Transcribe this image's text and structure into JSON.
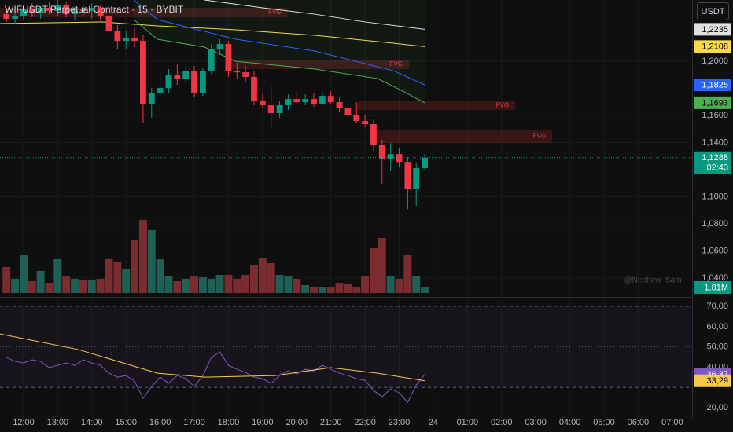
{
  "chart_data": [
    {
      "type": "candlestick",
      "title": "WIFUSDT Perpetual Contract · 15 · BYBIT",
      "currency": "USDT",
      "x": [
        11.5,
        11.75,
        12,
        12.25,
        12.5,
        12.75,
        13,
        13.25,
        13.5,
        13.75,
        14,
        14.25,
        14.5,
        14.75,
        15,
        15.25,
        15.5,
        15.75,
        16,
        16.25,
        16.5,
        16.75,
        17,
        17.25,
        17.5,
        17.75,
        18,
        18.25,
        18.5,
        18.75,
        19,
        19.25,
        19.5,
        19.75,
        20,
        20.25,
        20.5,
        20.75,
        21,
        21.25,
        21.5,
        21.75,
        22,
        22.25,
        22.5,
        22.75,
        23,
        23.25,
        23.5,
        23.75
      ],
      "open": [
        1.2348,
        1.2313,
        1.2336,
        1.2382,
        1.2359,
        1.2394,
        1.2371,
        1.2417,
        1.2348,
        1.2382,
        1.2371,
        1.2394,
        1.2336,
        1.222,
        1.215,
        1.2174,
        1.215,
        1.1686,
        1.1768,
        1.1802,
        1.1895,
        1.1872,
        1.193,
        1.1768,
        1.193,
        1.2092,
        1.2127,
        1.193,
        1.1918,
        1.1884,
        1.171,
        1.1675,
        1.1617,
        1.1675,
        1.1721,
        1.1698,
        1.1721,
        1.1686,
        1.1744,
        1.1698,
        1.1652,
        1.1605,
        1.1559,
        1.1536,
        1.1385,
        1.128,
        1.1315,
        1.1257,
        1.106,
        1.1211
      ],
      "high": [
        1.2394,
        1.2359,
        1.2406,
        1.2429,
        1.2406,
        1.244,
        1.2475,
        1.244,
        1.2406,
        1.2417,
        1.2429,
        1.2417,
        1.2371,
        1.2266,
        1.222,
        1.2243,
        1.2197,
        1.1802,
        1.1918,
        1.1942,
        1.1976,
        1.1953,
        1.1965,
        1.1953,
        1.2127,
        1.2162,
        1.215,
        1.1988,
        1.1965,
        1.193,
        1.1756,
        1.1814,
        1.171,
        1.1756,
        1.1768,
        1.1756,
        1.1768,
        1.1779,
        1.1779,
        1.1733,
        1.1686,
        1.1698,
        1.1605,
        1.157,
        1.142,
        1.1396,
        1.1362,
        1.1292,
        1.1246,
        1.1315
      ],
      "low": [
        1.229,
        1.2278,
        1.2301,
        1.2324,
        1.2313,
        1.2348,
        1.2336,
        1.2324,
        1.2301,
        1.2336,
        1.2313,
        1.2301,
        1.2104,
        1.2092,
        1.2092,
        1.2104,
        1.1547,
        1.1582,
        1.1733,
        1.1768,
        1.1826,
        1.1849,
        1.1733,
        1.1744,
        1.1907,
        1.2046,
        1.1884,
        1.1872,
        1.1849,
        1.1675,
        1.1652,
        1.1501,
        1.1582,
        1.164,
        1.1686,
        1.1675,
        1.1663,
        1.1675,
        1.1686,
        1.1628,
        1.1582,
        1.1547,
        1.1512,
        1.1338,
        1.1095,
        1.1188,
        1.1222,
        1.0909,
        1.0932,
        1.1199
      ],
      "close": [
        1.2313,
        1.2336,
        1.2382,
        1.2359,
        1.2394,
        1.2371,
        1.2417,
        1.2348,
        1.2382,
        1.2371,
        1.2394,
        1.2336,
        1.222,
        1.215,
        1.2174,
        1.215,
        1.1686,
        1.1768,
        1.1802,
        1.1895,
        1.1872,
        1.193,
        1.1768,
        1.193,
        1.2092,
        1.2127,
        1.193,
        1.1918,
        1.1884,
        1.171,
        1.1675,
        1.1617,
        1.1675,
        1.1721,
        1.1698,
        1.1721,
        1.1686,
        1.1744,
        1.1698,
        1.1652,
        1.1605,
        1.1559,
        1.1536,
        1.1385,
        1.128,
        1.1315,
        1.1257,
        1.106,
        1.1211,
        1.1288
      ],
      "up_color": "#089981",
      "down_color": "#f23645",
      "xlim": [
        11.31,
        31.58
      ],
      "ylim": [
        1.0278,
        1.2452
      ],
      "yticks": [
        {
          "value": 1.2,
          "label": "1,2000"
        },
        {
          "value": 1.16,
          "label": "1,1600"
        },
        {
          "value": 1.14,
          "label": "1,1400"
        },
        {
          "value": 1.1,
          "label": "1,1000"
        },
        {
          "value": 1.08,
          "label": "1,0800"
        },
        {
          "value": 1.06,
          "label": "1,0600"
        },
        {
          "value": 1.04,
          "label": "1,0400"
        }
      ],
      "grid": true,
      "last_price_label": "1,1288",
      "countdown": "02:43",
      "overlays": [
        {
          "color": "#e0e0e0",
          "x": [
            17.3,
            19,
            20.5,
            22,
            23.75
          ],
          "values": [
            1.2452,
            1.2394,
            1.2348,
            1.229,
            1.2235
          ],
          "value_label": "1,2235",
          "label_color": "#000000"
        },
        {
          "color": "#f7d94c",
          "x": [
            11.31,
            14.3,
            15.92,
            18.22,
            20.53,
            22.83,
            23.75
          ],
          "values": [
            1.2278,
            1.229,
            1.2261,
            1.2232,
            1.2191,
            1.2133,
            1.2108
          ],
          "value_label": "1,2108",
          "label_color": "#000000"
        },
        {
          "color": "#2962ff",
          "x": [
            15.23,
            15.92,
            18.22,
            20.53,
            22.83,
            23.75
          ],
          "values": [
            1.2452,
            1.2307,
            1.2162,
            1.2075,
            1.193,
            1.1825
          ],
          "value_label": "1,1825",
          "label_color": "#ffffff"
        },
        {
          "color": "#4caf50",
          "x": [
            15.23,
            15.92,
            17.3,
            18.22,
            20.53,
            22.37,
            23.06,
            23.75
          ],
          "values": [
            1.2307,
            1.2162,
            1.2104,
            1.1999,
            1.1942,
            1.1872,
            1.1785,
            1.1693
          ],
          "value_label": "1,1693",
          "label_color": "#000000",
          "fill": "rgba(76,175,80,0.07)"
        }
      ],
      "zones": [
        {
          "label": "FVG",
          "x": [
            11.31,
            19.73
          ],
          "y": [
            1.2324,
            1.2394
          ]
        },
        {
          "label": "FVG",
          "x": [
            17.99,
            23.29
          ],
          "y": [
            1.1942,
            1.2011
          ]
        },
        {
          "label": "FVG",
          "x": [
            21.79,
            26.4
          ],
          "y": [
            1.164,
            1.1704
          ]
        },
        {
          "label": "FVG",
          "x": [
            22.32,
            27.48
          ],
          "y": [
            1.1396,
            1.1495
          ]
        }
      ],
      "zone_color": "rgba(242,54,69,0.18)",
      "volume": {
        "values": [
          8.53,
          4.65,
          12.41,
          3.88,
          7.24,
          3.36,
          11.12,
          5.43,
          4.65,
          4.14,
          4.4,
          4.65,
          11.12,
          10.34,
          7.76,
          17.58,
          24.05,
          20.69,
          11.12,
          5.43,
          3.88,
          4.65,
          5.43,
          5.17,
          4.65,
          5.95,
          5.95,
          4.65,
          5.95,
          9.05,
          11.64,
          9.83,
          5.95,
          5.43,
          4.65,
          2.59,
          2.07,
          1.81,
          1.81,
          3.36,
          2.84,
          2.07,
          5.43,
          14.74,
          18.1,
          5.43,
          4.65,
          12.41,
          5.43,
          1.81
        ],
        "value_label": "1,81M",
        "up_color": "#1f5f56",
        "down_color": "#7b2c31"
      },
      "watermark": "@Nephew_Sam_"
    },
    {
      "type": "line",
      "xlim": [
        11.31,
        31.58
      ],
      "ylim": [
        15,
        73.5
      ],
      "xticks": [
        {
          "value": 12,
          "label": "12:00"
        },
        {
          "value": 13,
          "label": "13:00"
        },
        {
          "value": 14,
          "label": "14:00"
        },
        {
          "value": 15,
          "label": "15:00"
        },
        {
          "value": 16,
          "label": "16:00"
        },
        {
          "value": 17,
          "label": "17:00"
        },
        {
          "value": 18,
          "label": "18:00"
        },
        {
          "value": 19,
          "label": "19:00"
        },
        {
          "value": 20,
          "label": "20:00"
        },
        {
          "value": 21,
          "label": "21:00"
        },
        {
          "value": 22,
          "label": "22:00"
        },
        {
          "value": 23,
          "label": "23:00"
        },
        24,
        {
          "value": 25,
          "label": "01:00"
        },
        {
          "value": 26,
          "label": "02:00"
        },
        {
          "value": 27,
          "label": "03:00"
        },
        {
          "value": 28,
          "label": "04:00"
        },
        {
          "value": 29,
          "label": "05:00"
        },
        {
          "value": 30,
          "label": "06:00"
        },
        {
          "value": 31,
          "label": "07:00"
        }
      ],
      "yticks": [
        {
          "value": 70,
          "label": "70,00"
        },
        {
          "value": 60,
          "label": "60,00"
        },
        {
          "value": 50,
          "label": "50,00"
        },
        {
          "value": 40,
          "label": "40,00"
        },
        {
          "value": 20,
          "label": "20,00"
        }
      ],
      "bands": [
        70,
        50,
        30
      ],
      "band_fill": "rgba(126,87,194,0.08)",
      "series": [
        {
          "color": "#7e57c2",
          "x": [
            11.5,
            11.75,
            12,
            12.25,
            12.5,
            12.75,
            13,
            13.25,
            13.5,
            13.75,
            14,
            14.25,
            14.5,
            14.75,
            15,
            15.25,
            15.5,
            15.75,
            16,
            16.25,
            16.5,
            16.75,
            17,
            17.25,
            17.5,
            17.75,
            18,
            18.25,
            18.5,
            18.75,
            19,
            19.25,
            19.5,
            19.75,
            20,
            20.25,
            20.5,
            20.75,
            21,
            21.25,
            21.5,
            21.75,
            22,
            22.25,
            22.5,
            22.75,
            23,
            23.25,
            23.5,
            23.75
          ],
          "values": [
            44.81,
            42.87,
            42.09,
            43.64,
            42.87,
            39.77,
            40.93,
            42.09,
            40.93,
            43.64,
            42.09,
            40.93,
            37.05,
            35.12,
            35.89,
            33.18,
            24.65,
            30.47,
            35.12,
            32.02,
            35.89,
            34.34,
            30.47,
            35.89,
            44.81,
            47.52,
            40.93,
            38.99,
            37.44,
            35.12,
            34.34,
            32.02,
            35.89,
            38.22,
            36.67,
            38.99,
            38.22,
            40.93,
            38.99,
            37.05,
            35.89,
            34.34,
            33.57,
            28.53,
            25.43,
            29.3,
            27.36,
            22.71,
            31.24,
            36.37
          ],
          "value_label": "36,37",
          "label_color": "#ffffff"
        },
        {
          "color": "#f7c948",
          "x": [
            11.31,
            13.61,
            15.92,
            17.3,
            19.38,
            20.99,
            22.37,
            23.75
          ],
          "values": [
            56.43,
            48.68,
            37.05,
            35.12,
            35.89,
            39.77,
            37.05,
            33.29
          ],
          "value_label": "33,29",
          "label_color": "#000000"
        }
      ]
    }
  ]
}
